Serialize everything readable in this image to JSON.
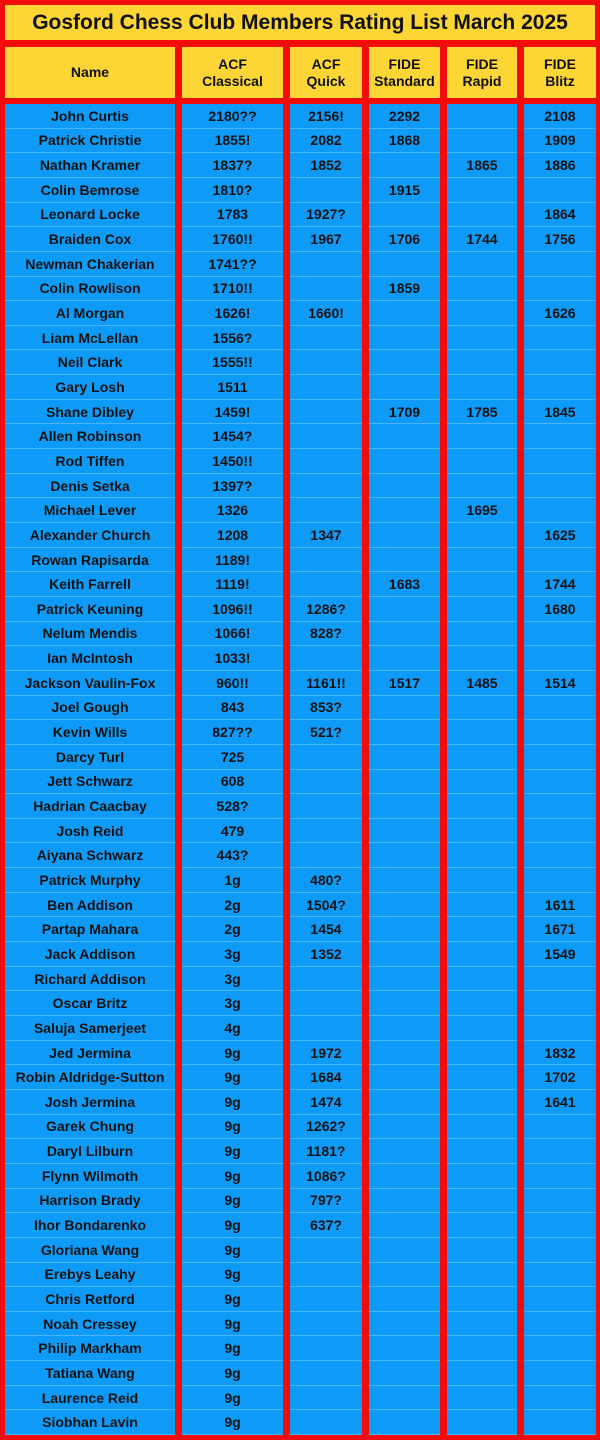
{
  "title": "Gosford Chess Club Members Rating List March 2025",
  "columns": [
    {
      "line1": "Name",
      "line2": ""
    },
    {
      "line1": "ACF",
      "line2": "Classical"
    },
    {
      "line1": "ACF",
      "line2": "Quick"
    },
    {
      "line1": "FIDE",
      "line2": "Standard"
    },
    {
      "line1": "FIDE",
      "line2": "Rapid"
    },
    {
      "line1": "FIDE",
      "line2": "Blitz"
    }
  ],
  "colors": {
    "border": "#f20c0c",
    "header": "#fdd535",
    "body": "#0d9bf7"
  },
  "rows": [
    [
      "John Curtis",
      "2180??",
      "2156!",
      "2292",
      "",
      "2108"
    ],
    [
      "Patrick Christie",
      "1855!",
      "2082",
      "1868",
      "",
      "1909"
    ],
    [
      "Nathan Kramer",
      "1837?",
      "1852",
      "",
      "1865",
      "1886"
    ],
    [
      "Colin Bemrose",
      "1810?",
      "",
      "1915",
      "",
      ""
    ],
    [
      "Leonard Locke",
      "1783",
      "1927?",
      "",
      "",
      "1864"
    ],
    [
      "Braiden Cox",
      "1760!!",
      "1967",
      "1706",
      "1744",
      "1756"
    ],
    [
      "Newman Chakerian",
      "1741??",
      "",
      "",
      "",
      ""
    ],
    [
      "Colin Rowlison",
      "1710!!",
      "",
      "1859",
      "",
      ""
    ],
    [
      "Al Morgan",
      "1626!",
      "1660!",
      "",
      "",
      "1626"
    ],
    [
      "Liam McLellan",
      "1556?",
      "",
      "",
      "",
      ""
    ],
    [
      "Neil Clark",
      "1555!!",
      "",
      "",
      "",
      ""
    ],
    [
      "Gary Losh",
      "1511",
      "",
      "",
      "",
      ""
    ],
    [
      "Shane Dibley",
      "1459!",
      "",
      "1709",
      "1785",
      "1845"
    ],
    [
      "Allen Robinson",
      "1454?",
      "",
      "",
      "",
      ""
    ],
    [
      "Rod Tiffen",
      "1450!!",
      "",
      "",
      "",
      ""
    ],
    [
      "Denis Setka",
      "1397?",
      "",
      "",
      "",
      ""
    ],
    [
      "Michael Lever",
      "1326",
      "",
      "",
      "1695",
      ""
    ],
    [
      "Alexander Church",
      "1208",
      "1347",
      "",
      "",
      "1625"
    ],
    [
      "Rowan Rapisarda",
      "1189!",
      "",
      "",
      "",
      ""
    ],
    [
      "Keith Farrell",
      "1119!",
      "",
      "1683",
      "",
      "1744"
    ],
    [
      "Patrick Keuning",
      "1096!!",
      "1286?",
      "",
      "",
      "1680"
    ],
    [
      "Nelum Mendis",
      "1066!",
      "828?",
      "",
      "",
      ""
    ],
    [
      "Ian McIntosh",
      "1033!",
      "",
      "",
      "",
      ""
    ],
    [
      "Jackson Vaulin-Fox",
      "960!!",
      "1161!!",
      "1517",
      "1485",
      "1514"
    ],
    [
      "Joel Gough",
      "843",
      "853?",
      "",
      "",
      ""
    ],
    [
      "Kevin Wills",
      "827??",
      "521?",
      "",
      "",
      ""
    ],
    [
      "Darcy Turl",
      "725",
      "",
      "",
      "",
      ""
    ],
    [
      "Jett Schwarz",
      "608",
      "",
      "",
      "",
      ""
    ],
    [
      "Hadrian Caacbay",
      "528?",
      "",
      "",
      "",
      ""
    ],
    [
      "Josh Reid",
      "479",
      "",
      "",
      "",
      ""
    ],
    [
      "Aiyana Schwarz",
      "443?",
      "",
      "",
      "",
      ""
    ],
    [
      "Patrick Murphy",
      "1g",
      "480?",
      "",
      "",
      ""
    ],
    [
      "Ben Addison",
      "2g",
      "1504?",
      "",
      "",
      "1611"
    ],
    [
      "Partap Mahara",
      "2g",
      "1454",
      "",
      "",
      "1671"
    ],
    [
      "Jack Addison",
      "3g",
      "1352",
      "",
      "",
      "1549"
    ],
    [
      "Richard Addison",
      "3g",
      "",
      "",
      "",
      ""
    ],
    [
      "Oscar Britz",
      "3g",
      "",
      "",
      "",
      ""
    ],
    [
      "Saluja Samerjeet",
      "4g",
      "",
      "",
      "",
      ""
    ],
    [
      "Jed Jermina",
      "9g",
      "1972",
      "",
      "",
      "1832"
    ],
    [
      "Robin Aldridge-Sutton",
      "9g",
      "1684",
      "",
      "",
      "1702"
    ],
    [
      "Josh Jermina",
      "9g",
      "1474",
      "",
      "",
      "1641"
    ],
    [
      "Garek Chung",
      "9g",
      "1262?",
      "",
      "",
      ""
    ],
    [
      "Daryl Lilburn",
      "9g",
      "1181?",
      "",
      "",
      ""
    ],
    [
      "Flynn Wilmoth",
      "9g",
      "1086?",
      "",
      "",
      ""
    ],
    [
      "Harrison Brady",
      "9g",
      "797?",
      "",
      "",
      ""
    ],
    [
      "Ihor Bondarenko",
      "9g",
      "637?",
      "",
      "",
      ""
    ],
    [
      "Gloriana Wang",
      "9g",
      "",
      "",
      "",
      ""
    ],
    [
      "Erebys Leahy",
      "9g",
      "",
      "",
      "",
      ""
    ],
    [
      "Chris Retford",
      "9g",
      "",
      "",
      "",
      ""
    ],
    [
      "Noah Cressey",
      "9g",
      "",
      "",
      "",
      ""
    ],
    [
      "Philip Markham",
      "9g",
      "",
      "",
      "",
      ""
    ],
    [
      "Tatiana Wang",
      "9g",
      "",
      "",
      "",
      ""
    ],
    [
      "Laurence Reid",
      "9g",
      "",
      "",
      "",
      ""
    ],
    [
      "Siobhan Lavin",
      "9g",
      "",
      "",
      "",
      ""
    ]
  ]
}
